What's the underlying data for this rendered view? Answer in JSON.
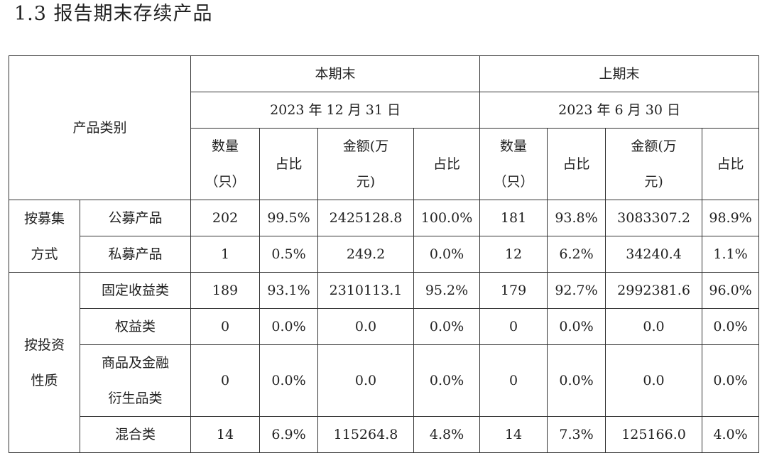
{
  "title": "1.3 报告期末存续产品",
  "header": {
    "category": "产品类别",
    "current": {
      "label": "本期末",
      "date": "2023 年 12 月 31 日"
    },
    "previous": {
      "label": "上期末",
      "date": "2023 年 6 月 30 日"
    },
    "cols": {
      "count": [
        "数量",
        "（只）"
      ],
      "ratio": "占比",
      "amount": [
        "金额(万",
        "元)"
      ]
    }
  },
  "groups": [
    {
      "label": [
        "按募集",
        "方式"
      ],
      "rows": [
        {
          "name": [
            "公募产品"
          ],
          "values": [
            "202",
            "99.5%",
            "2425128.8",
            "100.0%",
            "181",
            "93.8%",
            "3083307.2",
            "98.9%"
          ]
        },
        {
          "name": [
            "私募产品"
          ],
          "values": [
            "1",
            "0.5%",
            "249.2",
            "0.0%",
            "12",
            "6.2%",
            "34240.4",
            "1.1%"
          ]
        }
      ]
    },
    {
      "label": [
        "按投资",
        "性质"
      ],
      "rows": [
        {
          "name": [
            "固定收益类"
          ],
          "values": [
            "189",
            "93.1%",
            "2310113.1",
            "95.2%",
            "179",
            "92.7%",
            "2992381.6",
            "96.0%"
          ]
        },
        {
          "name": [
            "权益类"
          ],
          "values": [
            "0",
            "0.0%",
            "0.0",
            "0.0%",
            "0",
            "0.0%",
            "0.0",
            "0.0%"
          ]
        },
        {
          "name": [
            "商品及金融",
            "衍生品类"
          ],
          "values": [
            "0",
            "0.0%",
            "0.0",
            "0.0%",
            "0",
            "0.0%",
            "0.0",
            "0.0%"
          ]
        },
        {
          "name": [
            "混合类"
          ],
          "values": [
            "14",
            "6.9%",
            "115264.8",
            "4.8%",
            "14",
            "7.3%",
            "125166.0",
            "4.0%"
          ]
        }
      ]
    }
  ]
}
